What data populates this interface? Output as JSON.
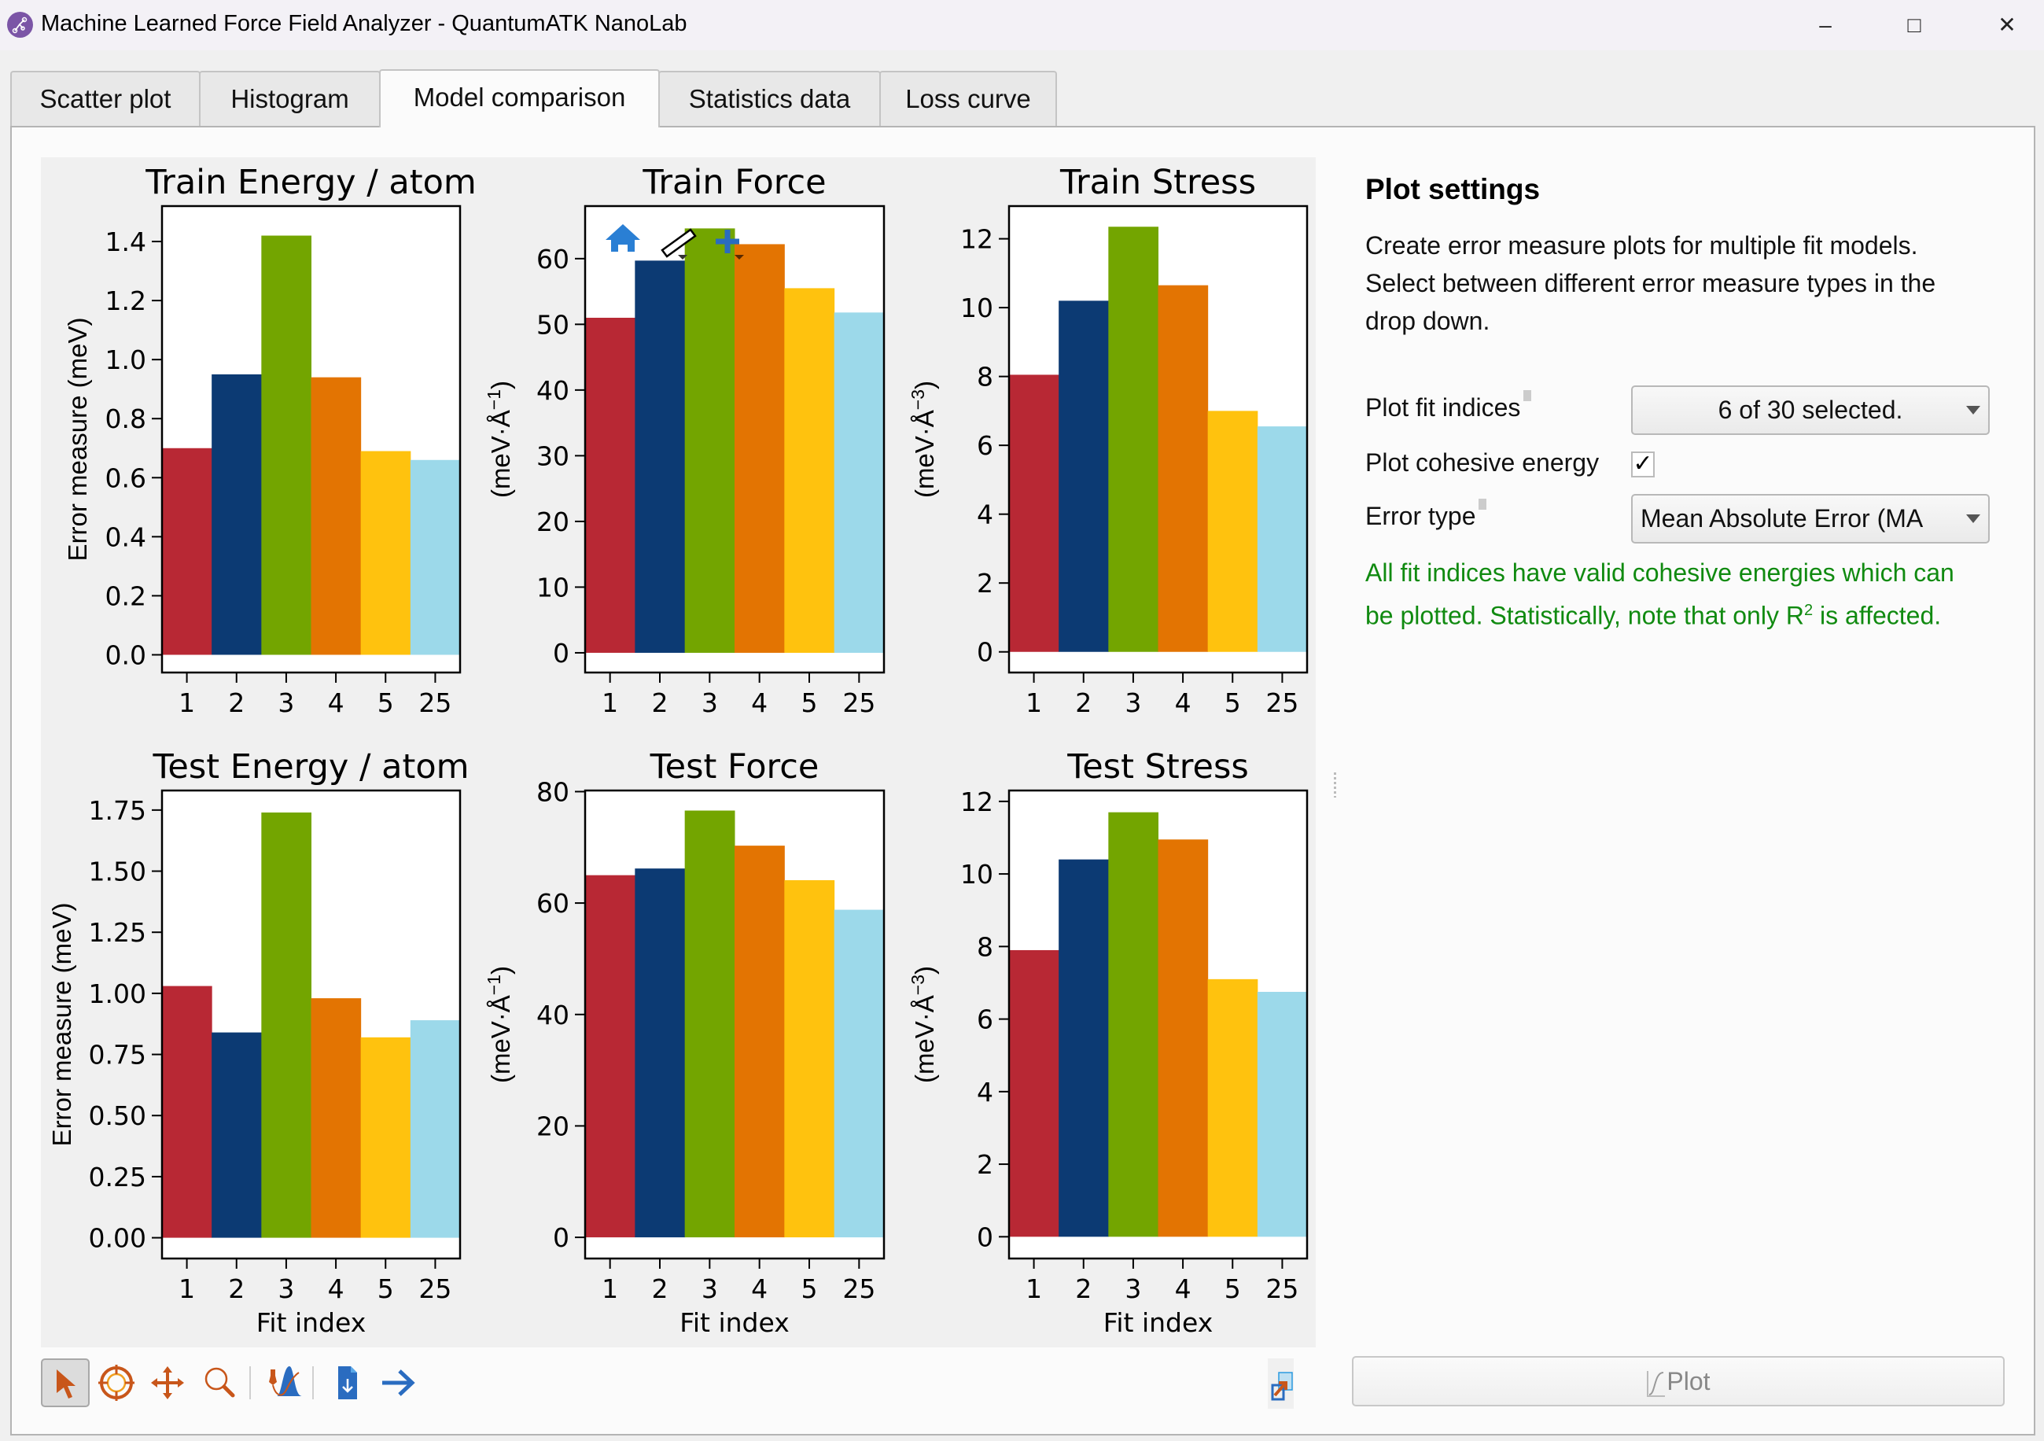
{
  "window": {
    "title": "Machine Learned Force Field Analyzer - QuantumATK NanoLab",
    "minimize": "–",
    "maximize": "□",
    "close": "✕"
  },
  "tabs": [
    {
      "label": "Scatter plot",
      "active": false
    },
    {
      "label": "Histogram",
      "active": false
    },
    {
      "label": "Model comparison",
      "active": true
    },
    {
      "label": "Statistics data",
      "active": false
    },
    {
      "label": "Loss curve",
      "active": false
    }
  ],
  "plot_settings": {
    "heading": "Plot settings",
    "description": "Create error measure plots for multiple fit models. Select between different error measure types in the drop down.",
    "fit_indices_label": "Plot fit indices",
    "fit_indices_value": "6 of 30 selected.",
    "cohesive_label": "Plot cohesive energy",
    "cohesive_checked": true,
    "cohesive_mark": "✓",
    "error_type_label": "Error type",
    "error_type_value": "Mean Absolute Error (MA",
    "note_before_sup": "All fit indices have valid cohesive energies which can be plotted. Statistically, note that only R",
    "note_sup": "2",
    "note_after_sup": " is affected.",
    "plot_button": "Plot"
  },
  "toolbar": {
    "icons": [
      "pointer-icon",
      "crosshair-icon",
      "pan-icon",
      "zoom-icon",
      "curve-fit-icon",
      "save-file-icon",
      "forward-arrow-icon"
    ],
    "export_icon": "export-plot-icon"
  },
  "colors": {
    "bars": [
      "#b82834",
      "#0c3a73",
      "#73a500",
      "#e37402",
      "#ffc20e",
      "#9cd9ea"
    ],
    "accent_note": "#108a10"
  },
  "chart_data": [
    {
      "type": "bar",
      "title": "Train Energy / atom",
      "categories": [
        "1",
        "2",
        "3",
        "4",
        "5",
        "25"
      ],
      "values": [
        0.7,
        0.95,
        1.42,
        0.94,
        0.69,
        0.66
      ],
      "ylabel": "Error measure (meV)",
      "xlabel": "",
      "ylim": [
        -0.06,
        1.52
      ],
      "yticks": [
        0.0,
        0.2,
        0.4,
        0.6,
        0.8,
        1.0,
        1.2,
        1.4
      ],
      "ytick_labels": [
        "0.0",
        "0.2",
        "0.4",
        "0.6",
        "0.8",
        "1.0",
        "1.2",
        "1.4"
      ],
      "grid": false
    },
    {
      "type": "bar",
      "title": "Train Force",
      "categories": [
        "1",
        "2",
        "3",
        "4",
        "5",
        "25"
      ],
      "values": [
        51.0,
        59.7,
        64.6,
        62.2,
        55.5,
        51.8
      ],
      "ylabel_main": "(meV·Å",
      "ylabel_sup": "−1",
      "ylabel_end": ")",
      "xlabel": "",
      "ylim": [
        -3.0,
        68.0
      ],
      "yticks": [
        0,
        10,
        20,
        30,
        40,
        50,
        60
      ],
      "ytick_labels": [
        "0",
        "10",
        "20",
        "30",
        "40",
        "50",
        "60"
      ],
      "grid": false
    },
    {
      "type": "bar",
      "title": "Train Stress",
      "categories": [
        "1",
        "2",
        "3",
        "4",
        "5",
        "25"
      ],
      "values": [
        8.05,
        10.2,
        12.35,
        10.65,
        7.0,
        6.55
      ],
      "ylabel_main": "(meV·Å",
      "ylabel_sup": "−3",
      "ylabel_end": ")",
      "xlabel": "",
      "ylim": [
        -0.6,
        12.95
      ],
      "yticks": [
        0,
        2,
        4,
        6,
        8,
        10,
        12
      ],
      "ytick_labels": [
        "0",
        "2",
        "4",
        "6",
        "8",
        "10",
        "12"
      ],
      "grid": false
    },
    {
      "type": "bar",
      "title": "Test Energy / atom",
      "categories": [
        "1",
        "2",
        "3",
        "4",
        "5",
        "25"
      ],
      "values": [
        1.03,
        0.84,
        1.74,
        0.98,
        0.82,
        0.89
      ],
      "ylabel": "Error measure (meV)",
      "xlabel": "Fit index",
      "ylim": [
        -0.085,
        1.83
      ],
      "yticks": [
        0.0,
        0.25,
        0.5,
        0.75,
        1.0,
        1.25,
        1.5,
        1.75
      ],
      "ytick_labels": [
        "0.00",
        "0.25",
        "0.50",
        "0.75",
        "1.00",
        "1.25",
        "1.50",
        "1.75"
      ],
      "grid": false
    },
    {
      "type": "bar",
      "title": "Test Force",
      "categories": [
        "1",
        "2",
        "3",
        "4",
        "5",
        "25"
      ],
      "values": [
        65.0,
        66.2,
        76.6,
        70.3,
        64.1,
        58.8
      ],
      "ylabel_main": "(meV·Å",
      "ylabel_sup": "−1",
      "ylabel_end": ")",
      "xlabel": "Fit index",
      "ylim": [
        -3.8,
        80.2
      ],
      "yticks": [
        0,
        20,
        40,
        60,
        80
      ],
      "ytick_labels": [
        "0",
        "20",
        "40",
        "60",
        "80"
      ],
      "grid": false
    },
    {
      "type": "bar",
      "title": "Test Stress",
      "categories": [
        "1",
        "2",
        "3",
        "4",
        "5",
        "25"
      ],
      "values": [
        7.9,
        10.4,
        11.7,
        10.95,
        7.1,
        6.75
      ],
      "ylabel_main": "(meV·Å",
      "ylabel_sup": "−3",
      "ylabel_end": ")",
      "xlabel": "Fit index",
      "ylim": [
        -0.6,
        12.3
      ],
      "yticks": [
        0,
        2,
        4,
        6,
        8,
        10,
        12
      ],
      "ytick_labels": [
        "0",
        "2",
        "4",
        "6",
        "8",
        "10",
        "12"
      ],
      "grid": false
    }
  ]
}
